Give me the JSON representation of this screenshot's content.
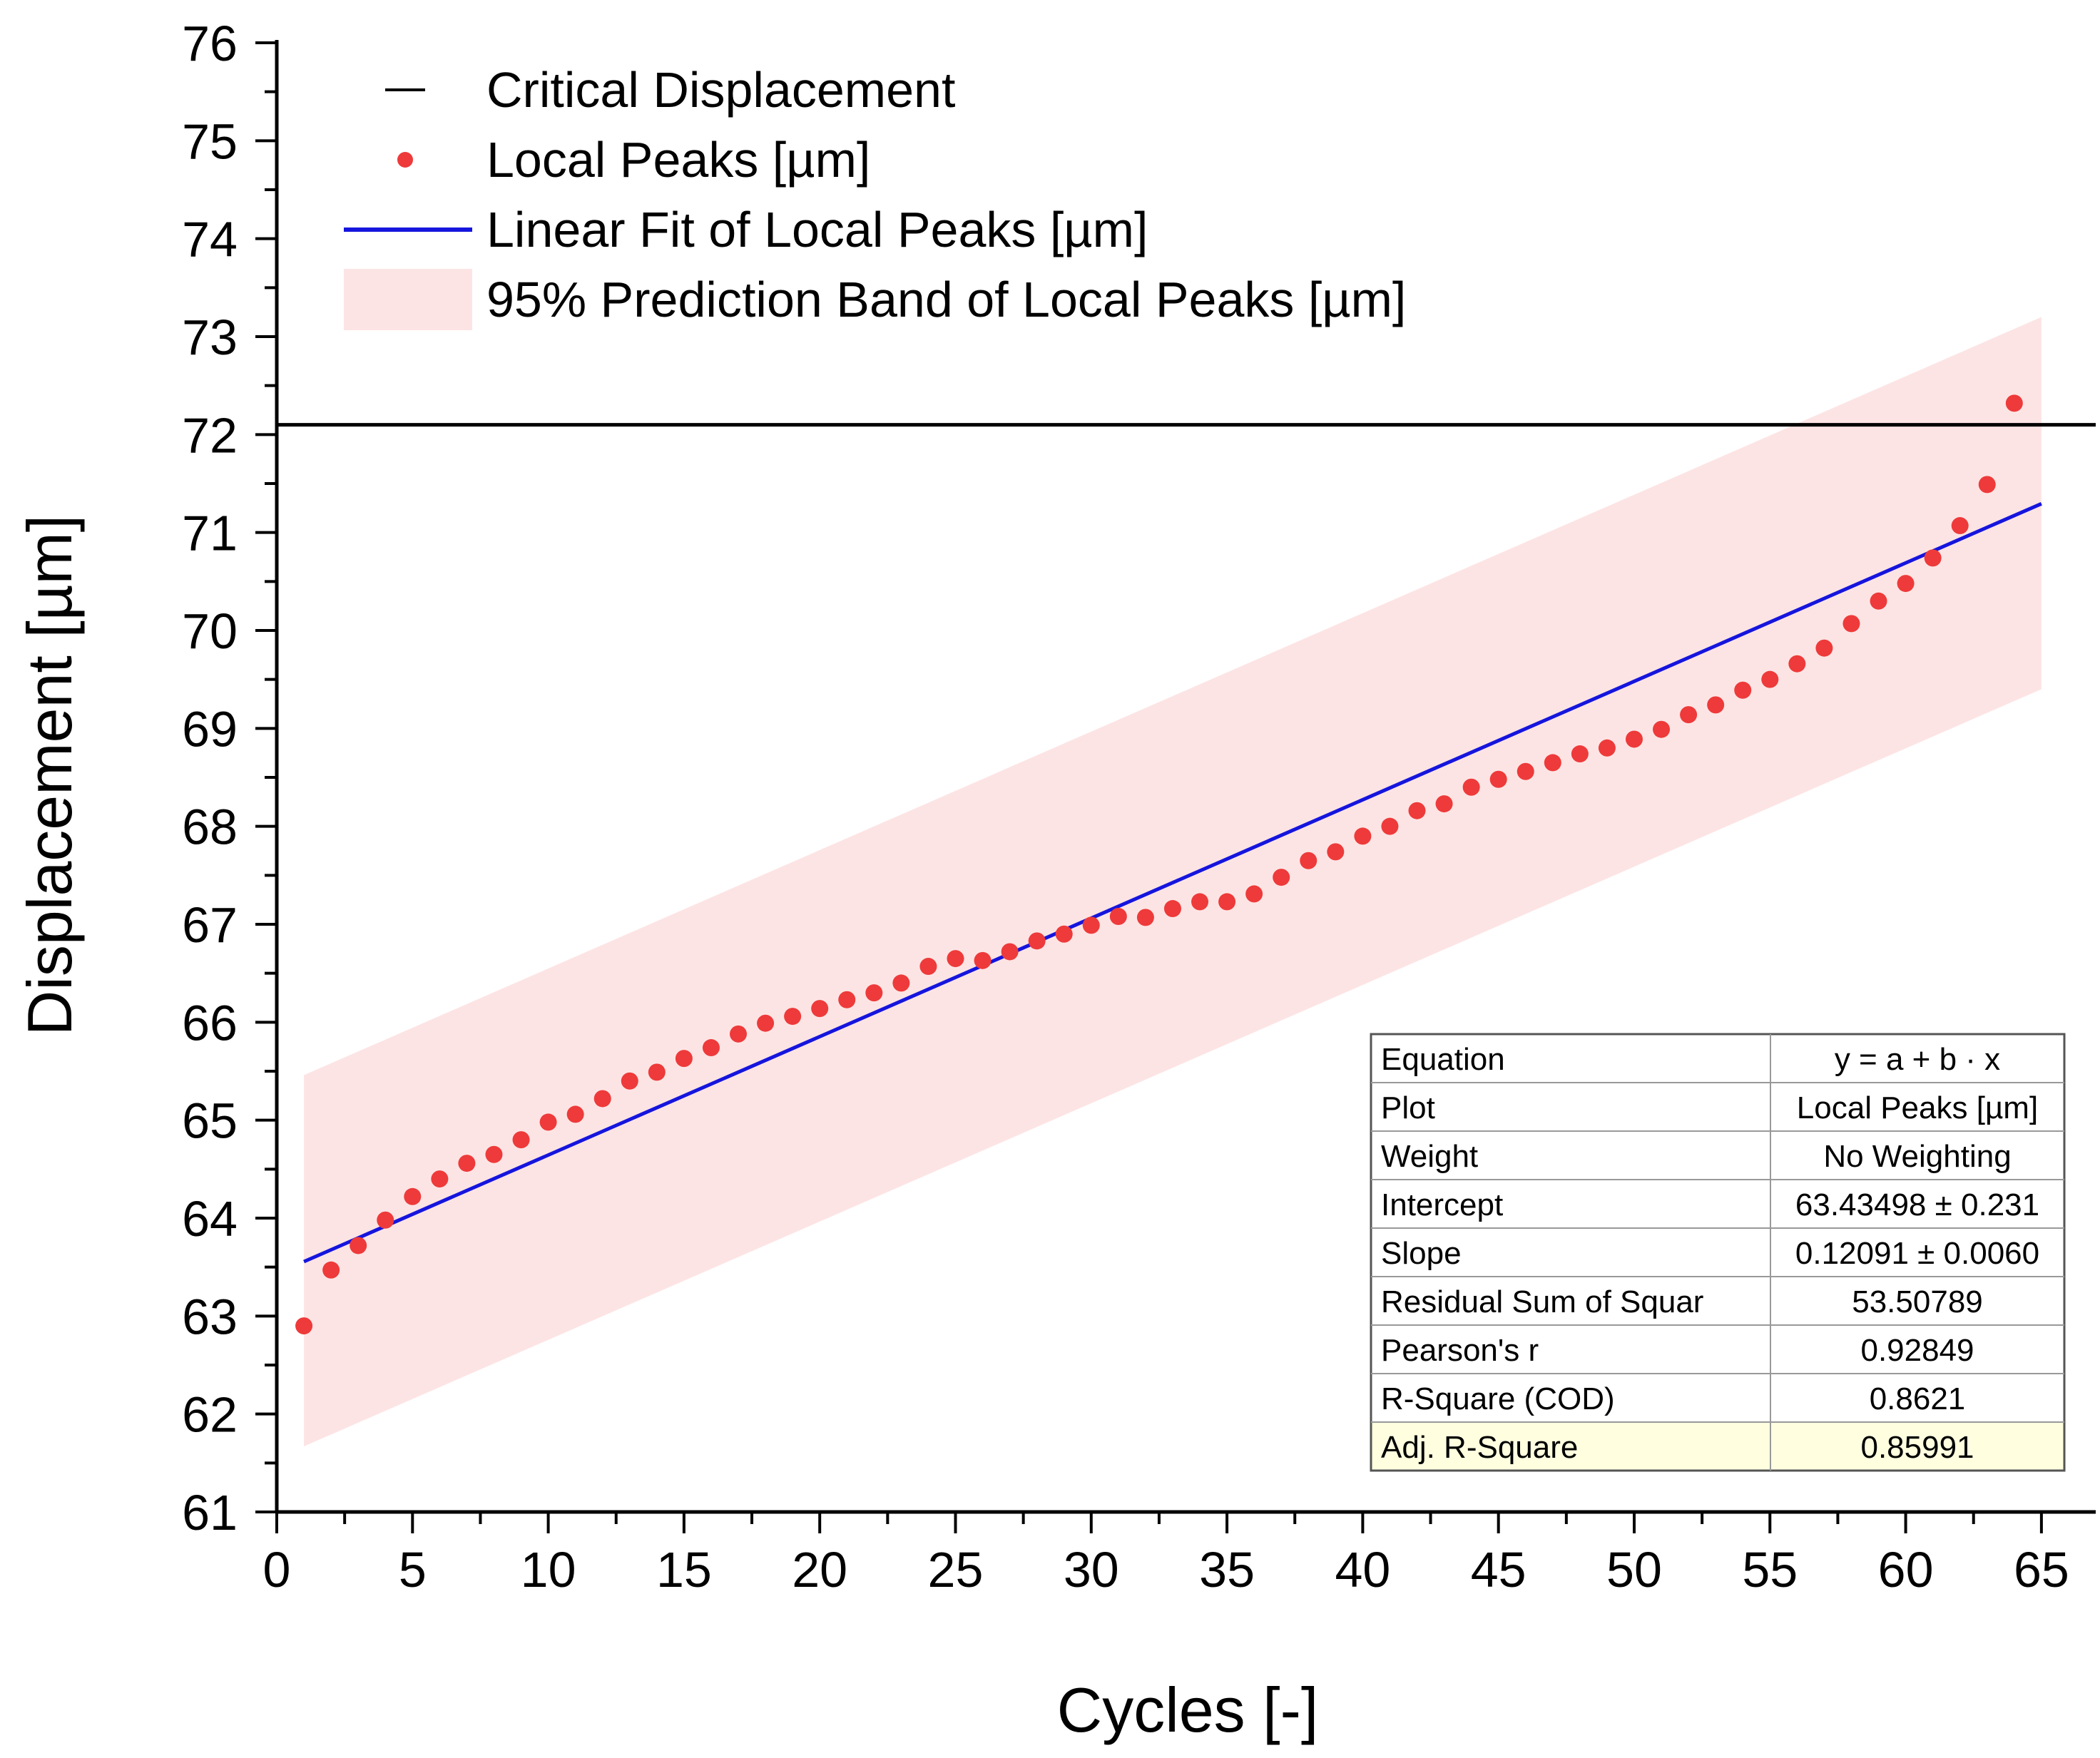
{
  "chart_data": {
    "type": "scatter",
    "xlabel": "Cycles [-]",
    "ylabel": "Displacement [µm]",
    "xlim": [
      0,
      67
    ],
    "ylim": [
      61,
      76
    ],
    "xticks": [
      0,
      5,
      10,
      15,
      20,
      25,
      30,
      35,
      40,
      45,
      50,
      55,
      60,
      65
    ],
    "yticks": [
      61,
      62,
      63,
      64,
      65,
      66,
      67,
      68,
      69,
      70,
      71,
      72,
      73,
      74,
      75,
      76
    ],
    "legend_position": "top-left",
    "legend": [
      {
        "label": "Critical Displacement",
        "kind": "line",
        "color": "#000000"
      },
      {
        "label": "Local Peaks [µm]",
        "kind": "marker",
        "color": "#ee3a3a"
      },
      {
        "label": "Linear Fit of Local Peaks [µm]",
        "kind": "line",
        "color": "#1515dd"
      },
      {
        "label": "95% Prediction Band of Local Peaks [µm]",
        "kind": "band",
        "color": "#fde4e4"
      }
    ],
    "critical_displacement": 72.1,
    "series": [
      {
        "name": "Local Peaks [µm]",
        "color": "#ee3a3a",
        "x": [
          1,
          2,
          3,
          4,
          5,
          6,
          7,
          8,
          9,
          10,
          11,
          12,
          13,
          14,
          15,
          16,
          17,
          18,
          19,
          20,
          21,
          22,
          23,
          24,
          25,
          26,
          27,
          28,
          29,
          30,
          31,
          32,
          33,
          34,
          35,
          36,
          37,
          38,
          39,
          40,
          41,
          42,
          43,
          44,
          45,
          46,
          47,
          48,
          49,
          50,
          51,
          52,
          53,
          54,
          55,
          56,
          57,
          58,
          59,
          60,
          61,
          62,
          63,
          64
        ],
        "y": [
          62.9,
          63.47,
          63.72,
          63.98,
          64.22,
          64.4,
          64.56,
          64.65,
          64.8,
          64.98,
          65.06,
          65.22,
          65.4,
          65.49,
          65.63,
          65.74,
          65.88,
          65.99,
          66.06,
          66.14,
          66.23,
          66.3,
          66.4,
          66.57,
          66.65,
          66.63,
          66.72,
          66.83,
          66.9,
          66.99,
          67.08,
          67.07,
          67.16,
          67.23,
          67.23,
          67.31,
          67.48,
          67.65,
          67.74,
          67.9,
          68.0,
          68.16,
          68.23,
          68.4,
          68.48,
          68.56,
          68.65,
          68.74,
          68.8,
          68.89,
          68.99,
          69.14,
          69.24,
          69.39,
          69.5,
          69.66,
          69.82,
          70.07,
          70.3,
          70.48,
          70.74,
          71.07,
          71.49,
          72.32
        ]
      }
    ],
    "fit": {
      "name": "Linear Fit of Local Peaks [µm]",
      "color": "#1515dd",
      "x_range": [
        1,
        65
      ],
      "intercept": 63.43498,
      "slope": 0.12091
    },
    "prediction_band": {
      "name": "95% Prediction Band of Local Peaks [µm]",
      "color": "#fde4e4",
      "x_range": [
        1,
        65
      ],
      "lower": [
        61.67,
        69.4
      ],
      "upper": [
        65.46,
        73.2
      ]
    },
    "stats_table": {
      "rows": [
        {
          "label": "Equation",
          "value": "y = a + b · x"
        },
        {
          "label": "Plot",
          "value": "Local Peaks [µm]"
        },
        {
          "label": "Weight",
          "value": "No Weighting"
        },
        {
          "label": "Intercept",
          "value": "63.43498 ± 0.231"
        },
        {
          "label": "Slope",
          "value": "0.12091 ± 0.0060"
        },
        {
          "label": "Residual Sum of Squar",
          "value": "53.50789"
        },
        {
          "label": "Pearson's r",
          "value": "0.92849"
        },
        {
          "label": "R-Square (COD)",
          "value": "0.8621"
        },
        {
          "label": "Adj. R-Square",
          "value": "0.85991"
        }
      ],
      "highlight_color": "#ffffe0"
    }
  }
}
